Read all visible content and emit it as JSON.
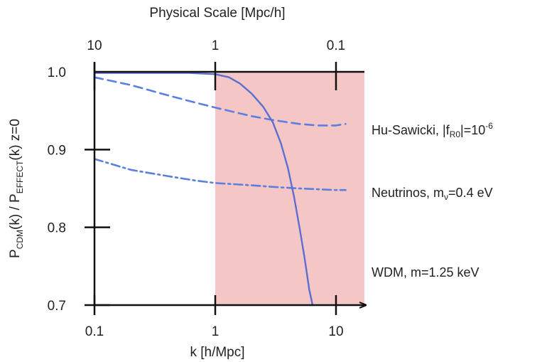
{
  "chart_data": {
    "type": "line",
    "title": "",
    "xlabel": "k [h/Mpc]",
    "x_scale": "log",
    "xlim": [
      0.1,
      18
    ],
    "x_ticks": [
      0.1,
      1,
      10
    ],
    "x_tick_labels": [
      "0.1",
      "1",
      "10"
    ],
    "top_axis": {
      "label": "Physical Scale [Mpc/h]",
      "ticks": [
        10,
        1,
        0.1
      ],
      "tick_labels": [
        "10",
        "1",
        "0.1"
      ]
    },
    "ylabel": {
      "p1": "P",
      "s1": "CDM",
      "p2": "(k) / P",
      "s2": "EFFECT",
      "p3": "(k) z=0"
    },
    "ylim": [
      0.7,
      1.0
    ],
    "y_ticks": [
      0.7,
      0.8,
      0.9,
      1.0
    ],
    "y_tick_labels": [
      "0.7",
      "0.8",
      "0.9",
      "1.0"
    ],
    "shaded_region": {
      "x_from": 1,
      "x_to": 18,
      "color": "#f5c6c6"
    },
    "series": [
      {
        "label": {
          "p1": "Hu-Sawicki,  |f",
          "sub": "R0",
          "p2": "|=10",
          "sup": "-6"
        },
        "style": "dashed",
        "color": "#5b7fe0",
        "x": [
          0.1,
          0.2,
          0.4,
          0.7,
          1,
          2,
          3,
          5,
          7,
          10,
          12
        ],
        "y": [
          0.993,
          0.983,
          0.97,
          0.96,
          0.954,
          0.943,
          0.938,
          0.933,
          0.931,
          0.931,
          0.933
        ]
      },
      {
        "label": {
          "p1": "Neutrinos, m",
          "sub": "ν",
          "p2": "=0.4 eV"
        },
        "style": "dashdot",
        "color": "#5b7fe0",
        "x": [
          0.1,
          0.2,
          0.4,
          0.7,
          1,
          2,
          3,
          5,
          7,
          10,
          12
        ],
        "y": [
          0.888,
          0.874,
          0.866,
          0.86,
          0.857,
          0.854,
          0.852,
          0.85,
          0.849,
          0.848,
          0.848
        ]
      },
      {
        "label": {
          "p1": "WDM, m=1.25 keV"
        },
        "style": "solid",
        "color": "#5b6fd0",
        "x": [
          0.1,
          0.3,
          0.6,
          1.0,
          1.3,
          1.6,
          2.0,
          2.5,
          3.0,
          3.5,
          4.0,
          4.5,
          5.0,
          5.5,
          6.0,
          6.4
        ],
        "y": [
          0.9985,
          0.9985,
          0.9985,
          0.997,
          0.993,
          0.985,
          0.972,
          0.955,
          0.935,
          0.908,
          0.876,
          0.839,
          0.799,
          0.76,
          0.72,
          0.7
        ]
      }
    ],
    "grid": false,
    "legend": "labels-right"
  }
}
